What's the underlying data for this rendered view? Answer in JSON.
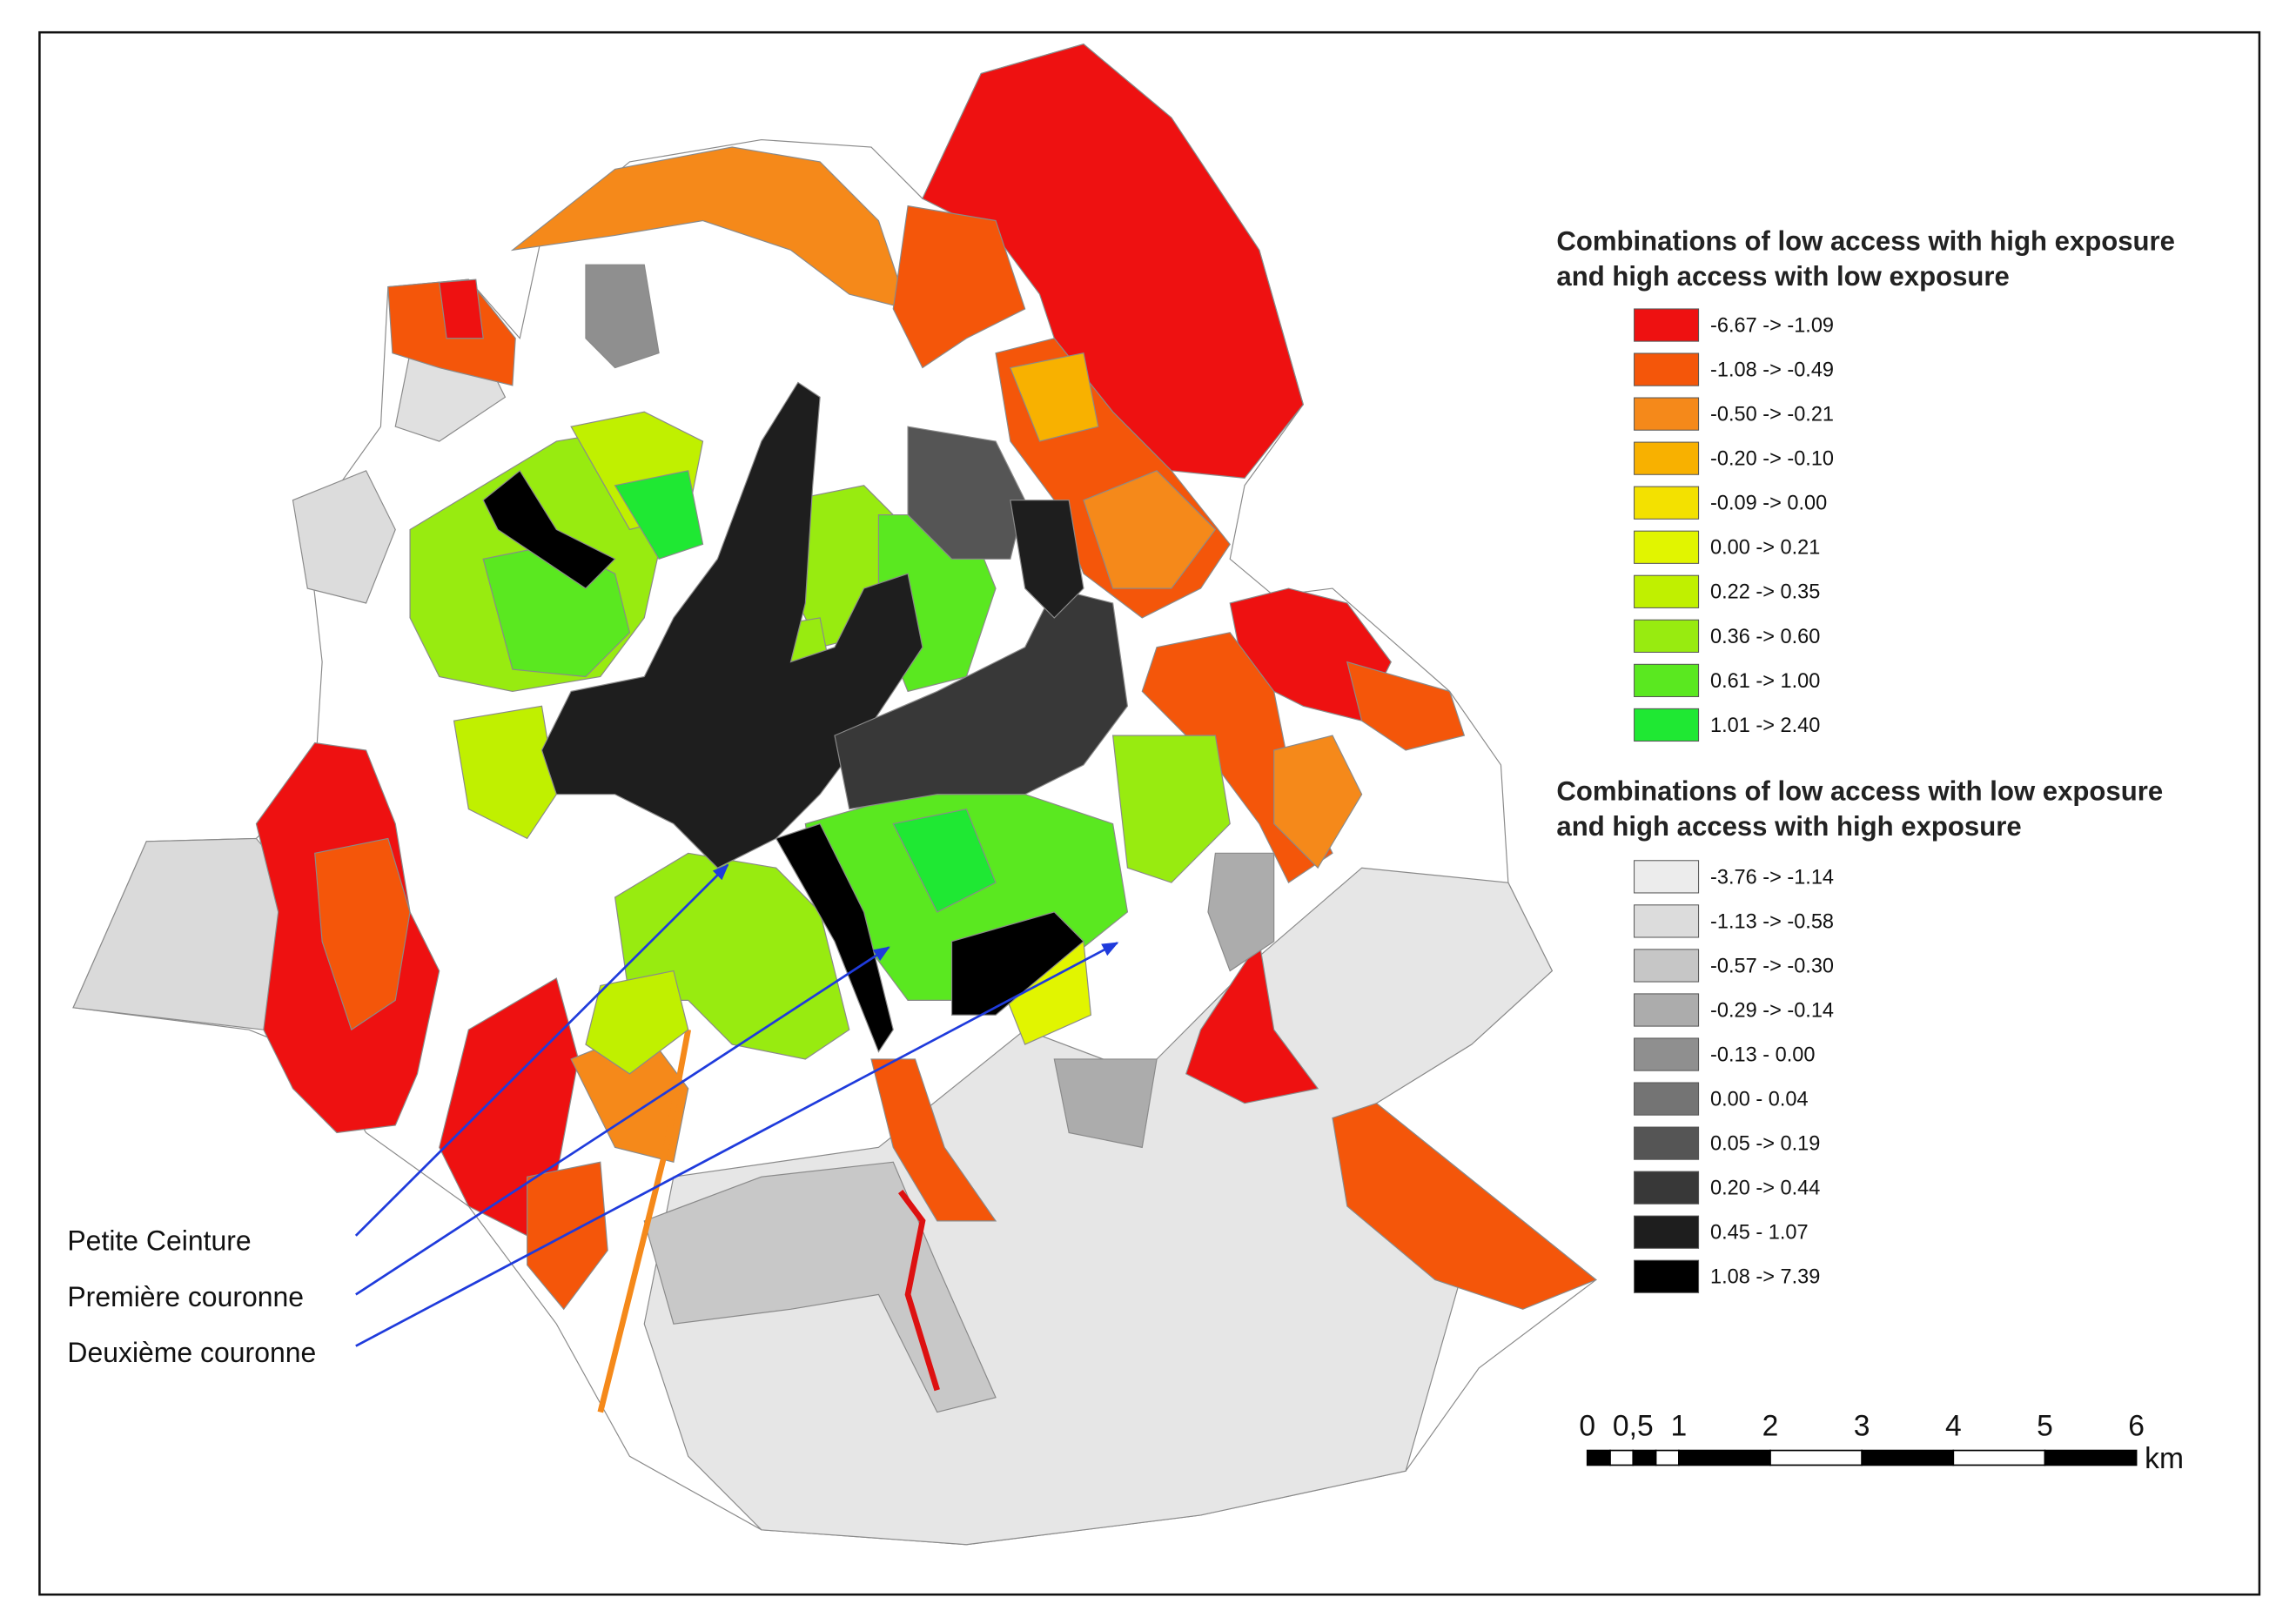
{
  "legend_high_low": {
    "title_lines": [
      "Combinations of low access with high exposure",
      "and high access with low exposure"
    ],
    "items": [
      {
        "label": "-6.67 -> -1.09",
        "color": "#ee1111"
      },
      {
        "label": "-1.08 -> -0.49",
        "color": "#f4560a"
      },
      {
        "label": "-0.50 -> -0.21",
        "color": "#f5891a"
      },
      {
        "label": "-0.20 -> -0.10",
        "color": "#f8b100"
      },
      {
        "label": "-0.09 -> 0.00",
        "color": "#f3e100"
      },
      {
        "label": "0.00 -> 0.21",
        "color": "#e1f500"
      },
      {
        "label": "0.22 -> 0.35",
        "color": "#c0f000"
      },
      {
        "label": "0.36 -> 0.60",
        "color": "#98eb10"
      },
      {
        "label": "0.61 -> 1.00",
        "color": "#5ae820"
      },
      {
        "label": "1.01 -> 2.40",
        "color": "#1fe833"
      }
    ]
  },
  "legend_low_high": {
    "title_lines": [
      "Combinations of low access with low exposure",
      "and high access with high exposure"
    ],
    "items": [
      {
        "label": "-3.76 -> -1.14",
        "color": "#ececec"
      },
      {
        "label": "-1.13 -> -0.58",
        "color": "#dcdcdc"
      },
      {
        "label": "-0.57 -> -0.30",
        "color": "#c6c6c6"
      },
      {
        "label": "-0.29 -> -0.14",
        "color": "#acacac"
      },
      {
        "label": "-0.13 - 0.00",
        "color": "#8f8f8f"
      },
      {
        "label": "0.00 - 0.04",
        "color": "#747474"
      },
      {
        "label": "0.05 -> 0.19",
        "color": "#555555"
      },
      {
        "label": "0.20 -> 0.44",
        "color": "#383838"
      },
      {
        "label": "0.45 - 1.07",
        "color": "#1e1e1e"
      },
      {
        "label": "1.08 -> 7.39",
        "color": "#000000"
      }
    ]
  },
  "annotations": [
    "Petite Ceinture",
    "Première couronne",
    "Deuxième couronne"
  ],
  "scale_bar": {
    "labels": [
      "0",
      "0,5",
      "1",
      "2",
      "3",
      "4",
      "5",
      "6"
    ],
    "unit": "km"
  }
}
